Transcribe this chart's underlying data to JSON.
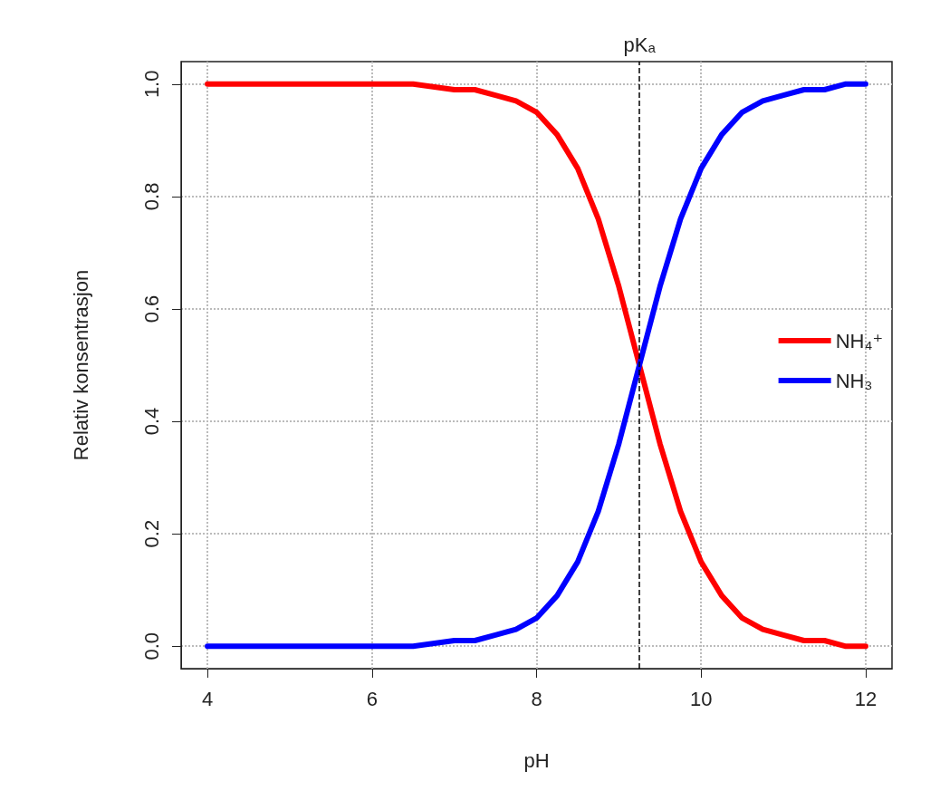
{
  "chart_data": {
    "type": "line",
    "xlabel": "pH",
    "ylabel": "Relativ konsentrasjon",
    "x": [
      4,
      4.5,
      5,
      5.5,
      6,
      6.5,
      7,
      7.25,
      7.5,
      7.75,
      8,
      8.25,
      8.5,
      8.75,
      9,
      9.25,
      9.5,
      9.75,
      10,
      10.25,
      10.5,
      10.75,
      11,
      11.25,
      11.5,
      11.75,
      12
    ],
    "series": [
      {
        "name": "NH₄⁺",
        "color": "#ff0000",
        "values": [
          1,
          1,
          1,
          1,
          1,
          1,
          0.99,
          0.99,
          0.98,
          0.97,
          0.95,
          0.91,
          0.85,
          0.76,
          0.64,
          0.5,
          0.36,
          0.24,
          0.15,
          0.09,
          0.05,
          0.03,
          0.02,
          0.01,
          0.01,
          0,
          0
        ]
      },
      {
        "name": "NH₃",
        "color": "#0000ff",
        "values": [
          0,
          0,
          0,
          0,
          0,
          0,
          0.01,
          0.01,
          0.02,
          0.03,
          0.05,
          0.09,
          0.15,
          0.24,
          0.36,
          0.5,
          0.64,
          0.76,
          0.85,
          0.91,
          0.95,
          0.97,
          0.98,
          0.99,
          0.99,
          1,
          1
        ]
      }
    ],
    "xlim": [
      3.68,
      12.32
    ],
    "xticks": [
      4,
      6,
      8,
      10,
      12
    ],
    "ylim": [
      -0.04,
      1.04
    ],
    "yticks": [
      {
        "value": 0,
        "label": "0.0"
      },
      {
        "value": 0.2,
        "label": "0.2"
      },
      {
        "value": 0.4,
        "label": "0.4"
      },
      {
        "value": 0.6,
        "label": "0.6"
      },
      {
        "value": 0.8,
        "label": "0.8"
      },
      {
        "value": 1,
        "label": "1.0"
      }
    ],
    "ref_lines": [
      {
        "axis": "x",
        "value": 9.25,
        "label": "pKₐ",
        "color": "#000000",
        "line_style": "dashed"
      }
    ],
    "grid": true,
    "legend": "right",
    "line_style": "solid"
  }
}
